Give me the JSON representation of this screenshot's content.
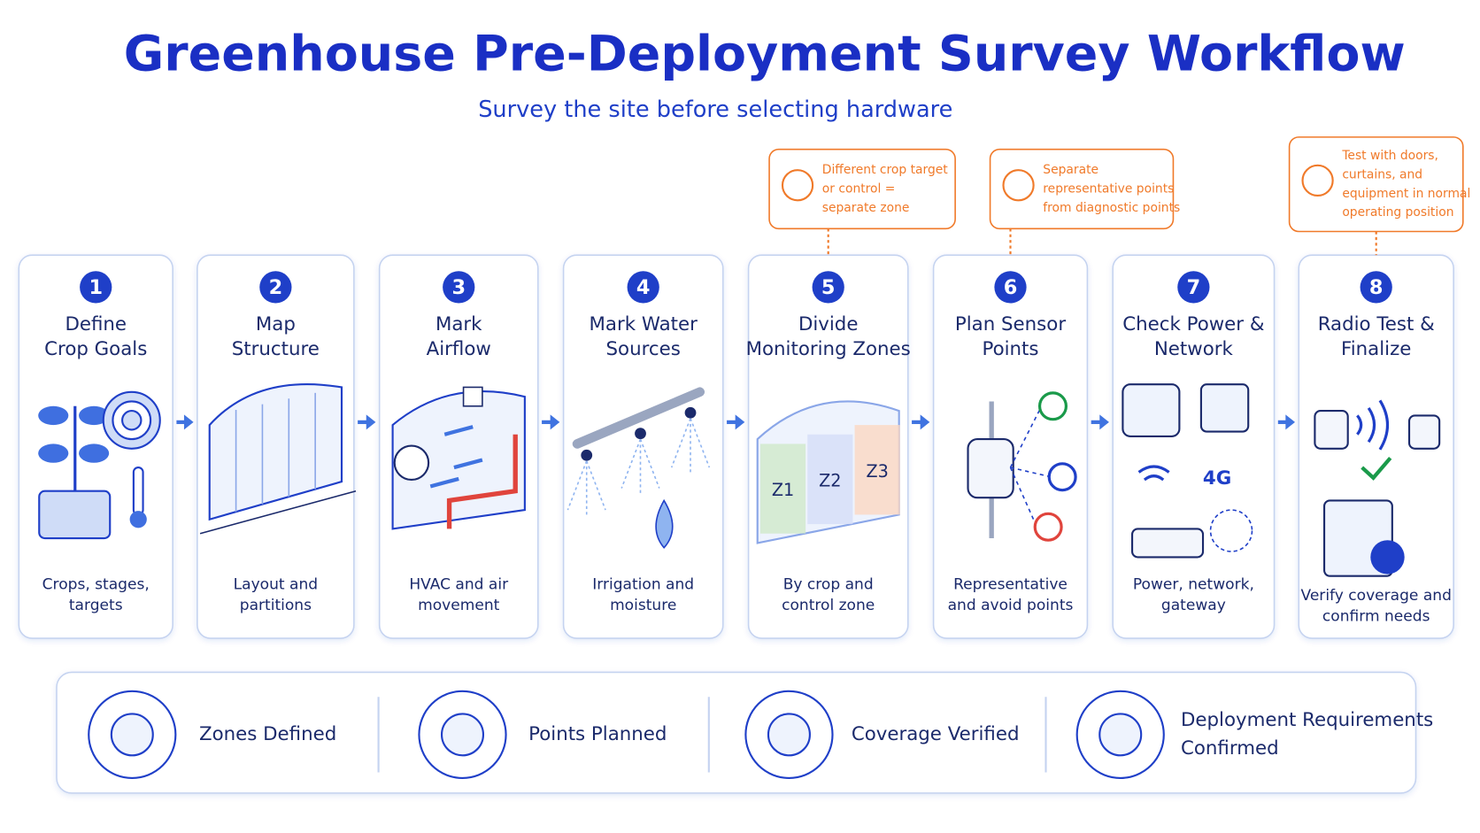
{
  "header": {
    "title": "Greenhouse Pre-Deployment Survey Workflow",
    "subtitle": "Survey the site before selecting hardware"
  },
  "steps": [
    {
      "number": "1",
      "title_lines": [
        "Define",
        "Crop Goals"
      ],
      "description_lines": [
        "Crops, stages,",
        "targets"
      ]
    },
    {
      "number": "2",
      "title_lines": [
        "Map",
        "Structure"
      ],
      "description_lines": [
        "Layout and",
        "partitions"
      ]
    },
    {
      "number": "3",
      "title_lines": [
        "Mark",
        "Airflow"
      ],
      "description_lines": [
        "HVAC and air",
        "movement"
      ]
    },
    {
      "number": "4",
      "title_lines": [
        "Mark Water",
        "Sources"
      ],
      "description_lines": [
        "Irrigation and",
        "moisture"
      ]
    },
    {
      "number": "5",
      "title_lines": [
        "Divide",
        "Monitoring Zones"
      ],
      "description_lines": [
        "By crop and",
        "control zone"
      ],
      "zone_labels": [
        "Z1",
        "Z2",
        "Z3"
      ]
    },
    {
      "number": "6",
      "title_lines": [
        "Plan Sensor",
        "Points"
      ],
      "description_lines": [
        "Representative",
        "and avoid points"
      ]
    },
    {
      "number": "7",
      "title_lines": [
        "Check Power &",
        "Network"
      ],
      "description_lines": [
        "Power, network,",
        "gateway"
      ],
      "network_label": "4G"
    },
    {
      "number": "8",
      "title_lines": [
        "Radio Test &",
        "Finalize"
      ],
      "description_lines": [
        "Verify coverage and",
        "confirm needs"
      ]
    }
  ],
  "callouts": [
    {
      "step": "5",
      "lines": [
        "Different crop target",
        "or control =",
        "separate zone"
      ]
    },
    {
      "step": "6",
      "lines": [
        "Separate",
        "representative points",
        "from diagnostic points"
      ]
    },
    {
      "step": "8",
      "lines": [
        "Test with doors,",
        "curtains, and",
        "equipment in normal",
        "operating position"
      ]
    }
  ],
  "outcomes": [
    {
      "lines": [
        "Zones Defined"
      ]
    },
    {
      "lines": [
        "Points Planned"
      ]
    },
    {
      "lines": [
        "Coverage Verified"
      ]
    },
    {
      "lines": [
        "Deployment Requirements",
        "Confirmed"
      ]
    }
  ]
}
